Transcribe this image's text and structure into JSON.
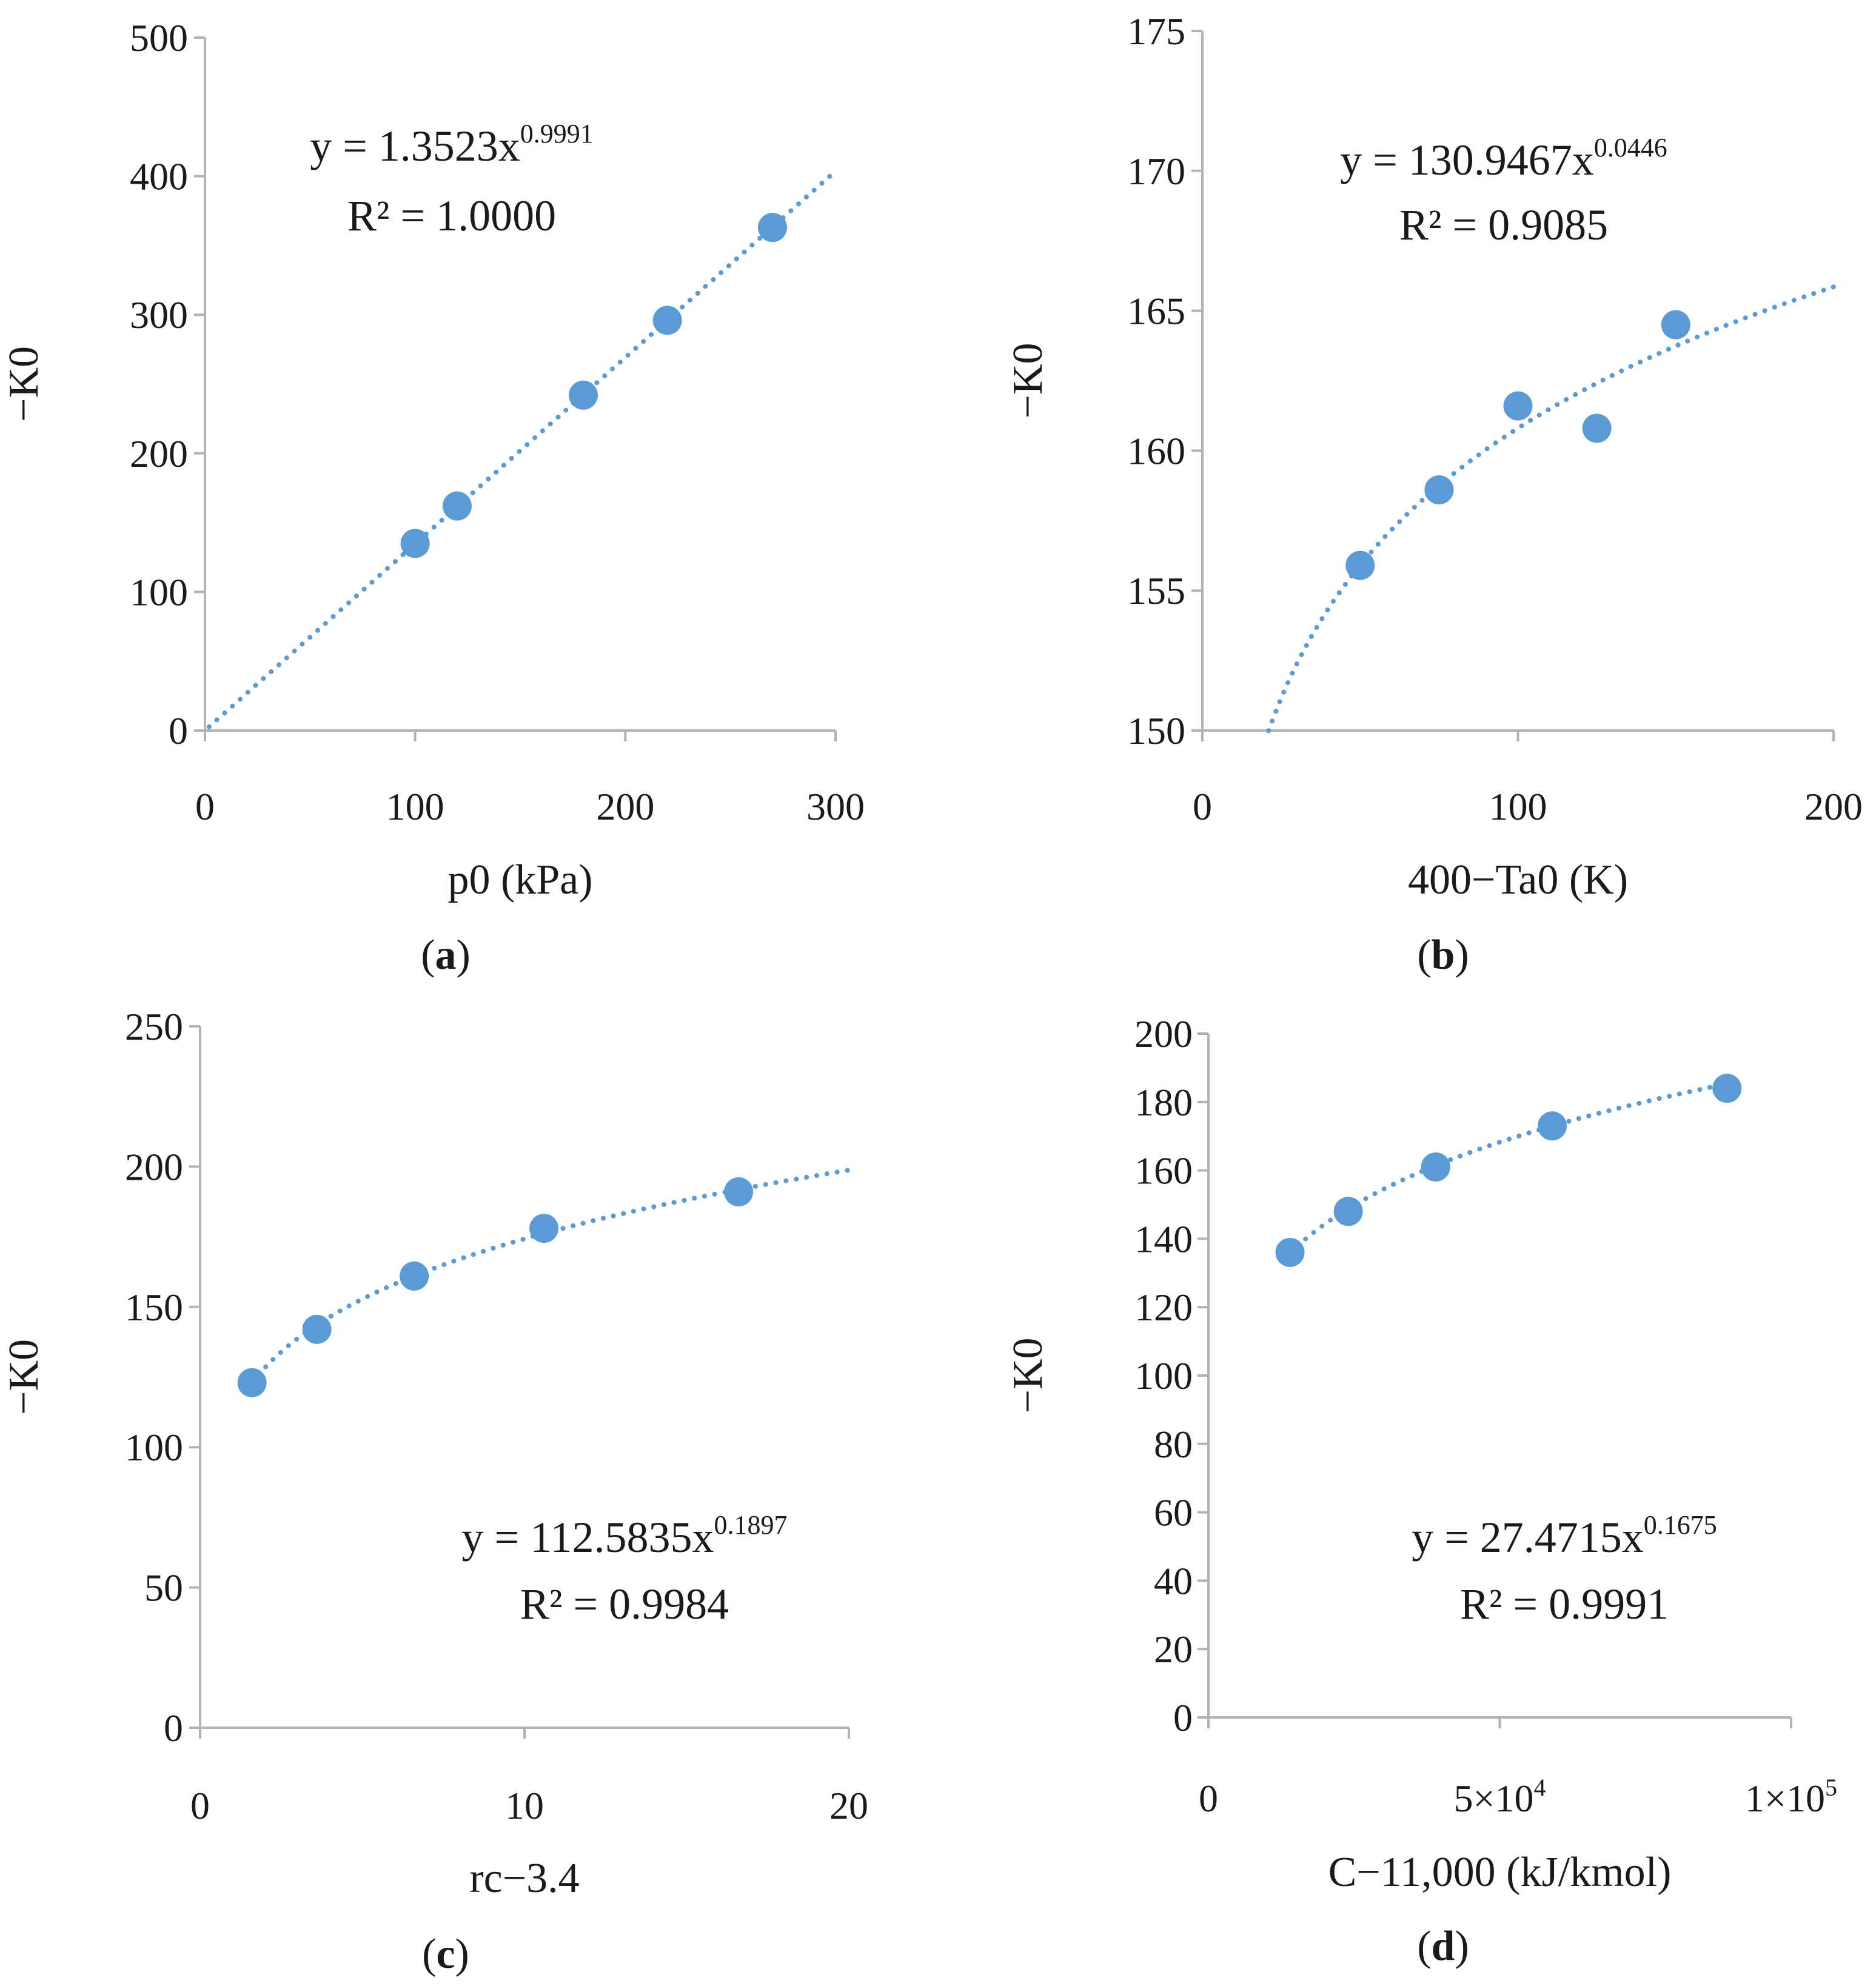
{
  "chart_data": [
    {
      "id": "a",
      "type": "scatter",
      "panel_label": "a",
      "xlabel": "p0 (kPa)",
      "ylabel": "−K0",
      "xlim": [
        0,
        300
      ],
      "ylim": [
        0,
        500
      ],
      "xticks": [
        "0",
        "100",
        "200",
        "300"
      ],
      "yticks": [
        "0",
        "100",
        "200",
        "300",
        "400",
        "500"
      ],
      "x": [
        100,
        120,
        180,
        220,
        270
      ],
      "y": [
        135,
        162,
        242,
        296,
        363
      ],
      "trendline": {
        "type": "power",
        "a": 1.3523,
        "b": 0.9991,
        "x_range": [
          2,
          300
        ]
      },
      "equation": {
        "prefix": "y = 1.3523x",
        "exponent": "0.9991",
        "r2": "R² = 1.0000"
      },
      "equation_position": "top-left"
    },
    {
      "id": "b",
      "type": "scatter",
      "panel_label": "b",
      "xlabel": "400−Ta0 (K)",
      "ylabel": "−K0",
      "xlim": [
        0,
        200
      ],
      "ylim": [
        150,
        175
      ],
      "xticks": [
        "0",
        "100",
        "200"
      ],
      "yticks": [
        "150",
        "155",
        "160",
        "165",
        "170",
        "175"
      ],
      "x": [
        50,
        75,
        100,
        125,
        150
      ],
      "y": [
        155.9,
        158.6,
        161.6,
        160.8,
        164.5
      ],
      "trendline": {
        "type": "power",
        "a": 130.9467,
        "b": 0.0446,
        "x_range": [
          21,
          200
        ]
      },
      "equation": {
        "prefix": "y = 130.9467x",
        "exponent": "0.0446",
        "r2": "R² = 0.9085"
      },
      "equation_position": "top-center"
    },
    {
      "id": "c",
      "type": "scatter",
      "panel_label": "c",
      "xlabel": "rc−3.4",
      "ylabel": "−K0",
      "xlim": [
        0,
        20
      ],
      "ylim": [
        0,
        250
      ],
      "xticks": [
        "0",
        "10",
        "20"
      ],
      "yticks": [
        "0",
        "50",
        "100",
        "150",
        "200",
        "250"
      ],
      "x": [
        1.6,
        3.6,
        6.6,
        10.6,
        16.6
      ],
      "y": [
        123,
        142,
        161,
        178,
        191
      ],
      "trendline": {
        "type": "power",
        "a": 112.5835,
        "b": 0.1897,
        "x_range": [
          1.6,
          20
        ]
      },
      "equation": {
        "prefix": "y = 112.5835x",
        "exponent": "0.1897",
        "r2": "R² = 0.9984"
      },
      "equation_position": "bottom-right"
    },
    {
      "id": "d",
      "type": "scatter",
      "panel_label": "d",
      "xlabel": "C−11,000 (kJ/kmol)",
      "ylabel": "−K0",
      "xlim": [
        0,
        100000
      ],
      "ylim": [
        0,
        200
      ],
      "xticks": [
        {
          "value": 0,
          "base": "0",
          "exp": ""
        },
        {
          "value": 50000,
          "base": "5×10",
          "exp": "4"
        },
        {
          "value": 100000,
          "base": "1×10",
          "exp": "5"
        }
      ],
      "yticks": [
        "0",
        "20",
        "40",
        "60",
        "80",
        "100",
        "120",
        "140",
        "160",
        "180",
        "200"
      ],
      "x": [
        14000,
        24000,
        39000,
        59000,
        89000
      ],
      "y": [
        136,
        148,
        161,
        173,
        184
      ],
      "trendline": {
        "type": "power",
        "a": 27.4715,
        "b": 0.1675,
        "x_range": [
          14000,
          89000
        ]
      },
      "equation": {
        "prefix": "y = 27.4715x",
        "exponent": "0.1675",
        "r2": "R² = 0.9991"
      },
      "equation_position": "bottom-right"
    }
  ]
}
